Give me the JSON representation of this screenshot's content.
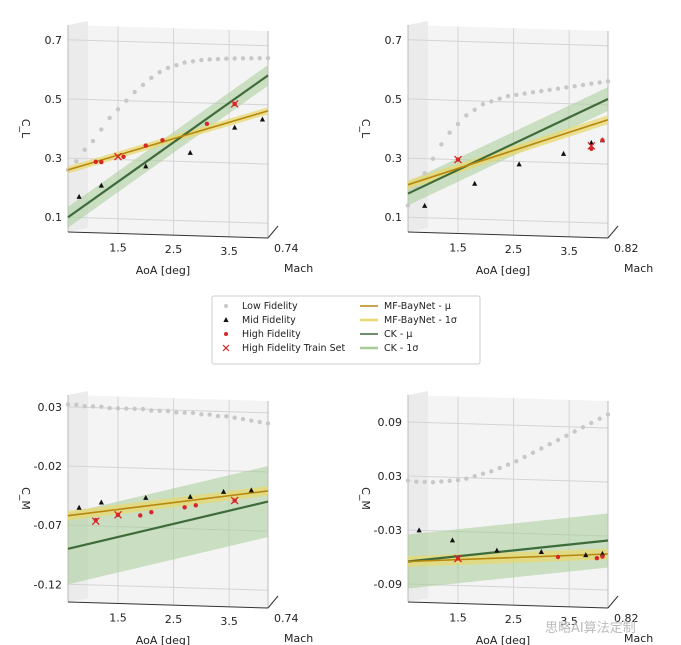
{
  "chart_data": [
    {
      "type": "line",
      "id": "cl_mach074",
      "ylabel": "C_L",
      "xlabel": "AoA [deg]",
      "zlabel": "Mach",
      "mach": "0.74",
      "yticks": [
        "0.1",
        "0.3",
        "0.5",
        "0.7"
      ],
      "xticks": [
        "1.5",
        "2.5",
        "3.5"
      ],
      "ylim": [
        0.05,
        0.75
      ],
      "xlim": [
        0.6,
        4.2
      ],
      "series": {
        "low_fidelity": {
          "x": [
            0.6,
            0.75,
            0.9,
            1.05,
            1.2,
            1.35,
            1.5,
            1.65,
            1.8,
            1.95,
            2.1,
            2.25,
            2.4,
            2.55,
            2.7,
            2.85,
            3.0,
            3.15,
            3.3,
            3.45,
            3.6,
            3.75,
            3.9,
            4.05,
            4.2
          ],
          "y": [
            0.26,
            0.29,
            0.33,
            0.36,
            0.4,
            0.44,
            0.47,
            0.5,
            0.53,
            0.555,
            0.58,
            0.6,
            0.615,
            0.625,
            0.635,
            0.64,
            0.645,
            0.648,
            0.65,
            0.652,
            0.654,
            0.655,
            0.656,
            0.657,
            0.658
          ]
        },
        "mid_fidelity": {
          "x": [
            0.8,
            1.2,
            2.0,
            2.8,
            3.6,
            4.1
          ],
          "y": [
            0.17,
            0.21,
            0.28,
            0.33,
            0.42,
            0.45
          ]
        },
        "high_fidelity": {
          "x": [
            1.1,
            1.2,
            1.6,
            2.0,
            2.3,
            3.1,
            3.6
          ],
          "y": [
            0.29,
            0.29,
            0.31,
            0.35,
            0.37,
            0.43,
            0.5
          ]
        },
        "high_fidelity_train": {
          "x": [
            1.5,
            3.6
          ],
          "y": [
            0.31,
            0.5
          ]
        },
        "mf_baynet_mu": {
          "x": [
            0.6,
            4.2
          ],
          "y": [
            0.26,
            0.48
          ]
        },
        "mf_baynet_sigma": 0.012,
        "ck_mu": {
          "x": [
            0.6,
            4.2
          ],
          "y": [
            0.1,
            0.6
          ]
        },
        "ck_sigma": 0.035
      }
    },
    {
      "type": "line",
      "id": "cl_mach082",
      "ylabel": "C_L",
      "xlabel": "AoA [deg]",
      "zlabel": "Mach",
      "mach": "0.82",
      "yticks": [
        "0.1",
        "0.3",
        "0.5",
        "0.7"
      ],
      "xticks": [
        "1.5",
        "2.5",
        "3.5"
      ],
      "ylim": [
        0.05,
        0.75
      ],
      "xlim": [
        0.6,
        4.2
      ],
      "series": {
        "low_fidelity": {
          "x": [
            0.6,
            0.75,
            0.9,
            1.05,
            1.2,
            1.35,
            1.5,
            1.65,
            1.8,
            1.95,
            2.1,
            2.25,
            2.4,
            2.55,
            2.7,
            2.85,
            3.0,
            3.15,
            3.3,
            3.45,
            3.6,
            3.75,
            3.9,
            4.05,
            4.2
          ],
          "y": [
            0.14,
            0.2,
            0.25,
            0.3,
            0.35,
            0.39,
            0.42,
            0.45,
            0.47,
            0.49,
            0.5,
            0.51,
            0.52,
            0.525,
            0.53,
            0.535,
            0.54,
            0.545,
            0.55,
            0.555,
            0.56,
            0.565,
            0.57,
            0.575,
            0.58
          ]
        },
        "mid_fidelity": {
          "x": [
            0.9,
            1.8,
            2.6,
            3.4,
            3.9,
            4.1
          ],
          "y": [
            0.14,
            0.22,
            0.29,
            0.33,
            0.37,
            0.38
          ]
        },
        "high_fidelity": {
          "x": [
            1.5,
            3.9,
            4.1
          ],
          "y": [
            0.3,
            0.35,
            0.38
          ]
        },
        "high_fidelity_train": {
          "x": [
            1.5,
            3.9
          ],
          "y": [
            0.3,
            0.36
          ]
        },
        "mf_baynet_mu": {
          "x": [
            0.6,
            4.2
          ],
          "y": [
            0.21,
            0.45
          ]
        },
        "mf_baynet_sigma": 0.015,
        "ck_mu": {
          "x": [
            0.6,
            4.2
          ],
          "y": [
            0.18,
            0.52
          ]
        },
        "ck_sigma": 0.04
      }
    },
    {
      "type": "line",
      "id": "cm_mach074",
      "ylabel": "C_M",
      "xlabel": "AoA [deg]",
      "zlabel": "Mach",
      "mach": "0.74",
      "yticks": [
        "-0.12",
        "-0.07",
        "-0.02",
        "0.03"
      ],
      "xticks": [
        "1.5",
        "2.5",
        "3.5"
      ],
      "ylim": [
        -0.135,
        0.04
      ],
      "xlim": [
        0.6,
        4.2
      ],
      "series": {
        "low_fidelity": {
          "x": [
            0.6,
            0.75,
            0.9,
            1.05,
            1.2,
            1.35,
            1.5,
            1.65,
            1.8,
            1.95,
            2.1,
            2.25,
            2.4,
            2.55,
            2.7,
            2.85,
            3.0,
            3.15,
            3.3,
            3.45,
            3.6,
            3.75,
            3.9,
            4.05,
            4.2
          ],
          "y": [
            0.032,
            0.032,
            0.031,
            0.031,
            0.031,
            0.03,
            0.03,
            0.03,
            0.03,
            0.03,
            0.029,
            0.029,
            0.029,
            0.028,
            0.028,
            0.028,
            0.027,
            0.027,
            0.026,
            0.026,
            0.025,
            0.024,
            0.023,
            0.022,
            0.021
          ]
        },
        "mid_fidelity": {
          "x": [
            0.8,
            1.2,
            2.0,
            2.8,
            3.4,
            3.9
          ],
          "y": [
            -0.055,
            -0.05,
            -0.045,
            -0.043,
            -0.038,
            -0.036
          ]
        },
        "high_fidelity": {
          "x": [
            1.1,
            1.5,
            1.9,
            2.1,
            2.7,
            2.9,
            3.6
          ],
          "y": [
            -0.065,
            -0.06,
            -0.06,
            -0.057,
            -0.052,
            -0.05,
            -0.045
          ]
        },
        "high_fidelity_train": {
          "x": [
            1.1,
            1.5,
            3.6
          ],
          "y": [
            -0.066,
            -0.06,
            -0.045
          ]
        },
        "mf_baynet_mu": {
          "x": [
            0.6,
            4.2
          ],
          "y": [
            -0.062,
            -0.036
          ]
        },
        "mf_baynet_sigma": 0.004,
        "ck_mu": {
          "x": [
            0.6,
            4.2
          ],
          "y": [
            -0.09,
            -0.045
          ]
        },
        "ck_sigma": 0.03
      }
    },
    {
      "type": "line",
      "id": "cm_mach082",
      "ylabel": "C_M",
      "xlabel": "AoA [deg]",
      "zlabel": "Mach",
      "mach": "0.82",
      "yticks": [
        "-0.09",
        "-0.03",
        "0.03",
        "0.09"
      ],
      "xticks": [
        "1.5",
        "2.5",
        "3.5"
      ],
      "ylim": [
        -0.11,
        0.12
      ],
      "xlim": [
        0.6,
        4.2
      ],
      "series": {
        "low_fidelity": {
          "x": [
            0.6,
            0.75,
            0.9,
            1.05,
            1.2,
            1.35,
            1.5,
            1.65,
            1.8,
            1.95,
            2.1,
            2.25,
            2.4,
            2.55,
            2.7,
            2.85,
            3.0,
            3.15,
            3.3,
            3.45,
            3.6,
            3.75,
            3.9,
            4.05,
            4.2
          ],
          "y": [
            0.025,
            0.024,
            0.024,
            0.024,
            0.025,
            0.026,
            0.027,
            0.029,
            0.032,
            0.035,
            0.038,
            0.042,
            0.046,
            0.05,
            0.055,
            0.06,
            0.065,
            0.07,
            0.075,
            0.08,
            0.085,
            0.09,
            0.095,
            0.1,
            0.105
          ]
        },
        "mid_fidelity": {
          "x": [
            0.8,
            1.4,
            2.2,
            3.0,
            3.8,
            4.1
          ],
          "y": [
            -0.03,
            -0.04,
            -0.05,
            -0.05,
            -0.052,
            -0.05
          ]
        },
        "high_fidelity": {
          "x": [
            1.5,
            3.3,
            4.0,
            4.1
          ],
          "y": [
            -0.06,
            -0.055,
            -0.055,
            -0.053
          ]
        },
        "high_fidelity_train": {
          "x": [
            1.5
          ],
          "y": [
            -0.06
          ]
        },
        "mf_baynet_mu": {
          "x": [
            0.6,
            4.2
          ],
          "y": [
            -0.065,
            -0.05
          ]
        },
        "mf_baynet_sigma": 0.006,
        "ck_mu": {
          "x": [
            0.6,
            4.2
          ],
          "y": [
            -0.065,
            -0.035
          ]
        },
        "ck_sigma": 0.03
      }
    }
  ],
  "legend": {
    "left": [
      {
        "key": "low_fidelity",
        "label": "Low Fidelity"
      },
      {
        "key": "mid_fidelity",
        "label": "Mid Fidelity"
      },
      {
        "key": "high_fidelity",
        "label": "High Fidelity"
      },
      {
        "key": "high_fidelity_train",
        "label": "High Fidelity Train Set"
      }
    ],
    "right": [
      {
        "key": "mf_baynet_mu",
        "label": "MF-BayNet - μ"
      },
      {
        "key": "mf_baynet_sigma",
        "label": "MF-BayNet - 1σ"
      },
      {
        "key": "ck_mu",
        "label": "CK - μ"
      },
      {
        "key": "ck_sigma",
        "label": "CK - 1σ"
      }
    ]
  },
  "colors": {
    "low_fidelity": "#c8c8c8",
    "mid_fidelity": "#111111",
    "high_fidelity": "#d62728",
    "high_fidelity_train": "#d62728",
    "mf_baynet_mu": "#b8860b",
    "mf_baynet_sigma": "#e8d870",
    "ck_mu": "#3e6b3a",
    "ck_sigma": "#a8cc98",
    "pane": "#f4f4f4",
    "grid": "#d4d4d4"
  },
  "watermark": "思略AI算法定制"
}
